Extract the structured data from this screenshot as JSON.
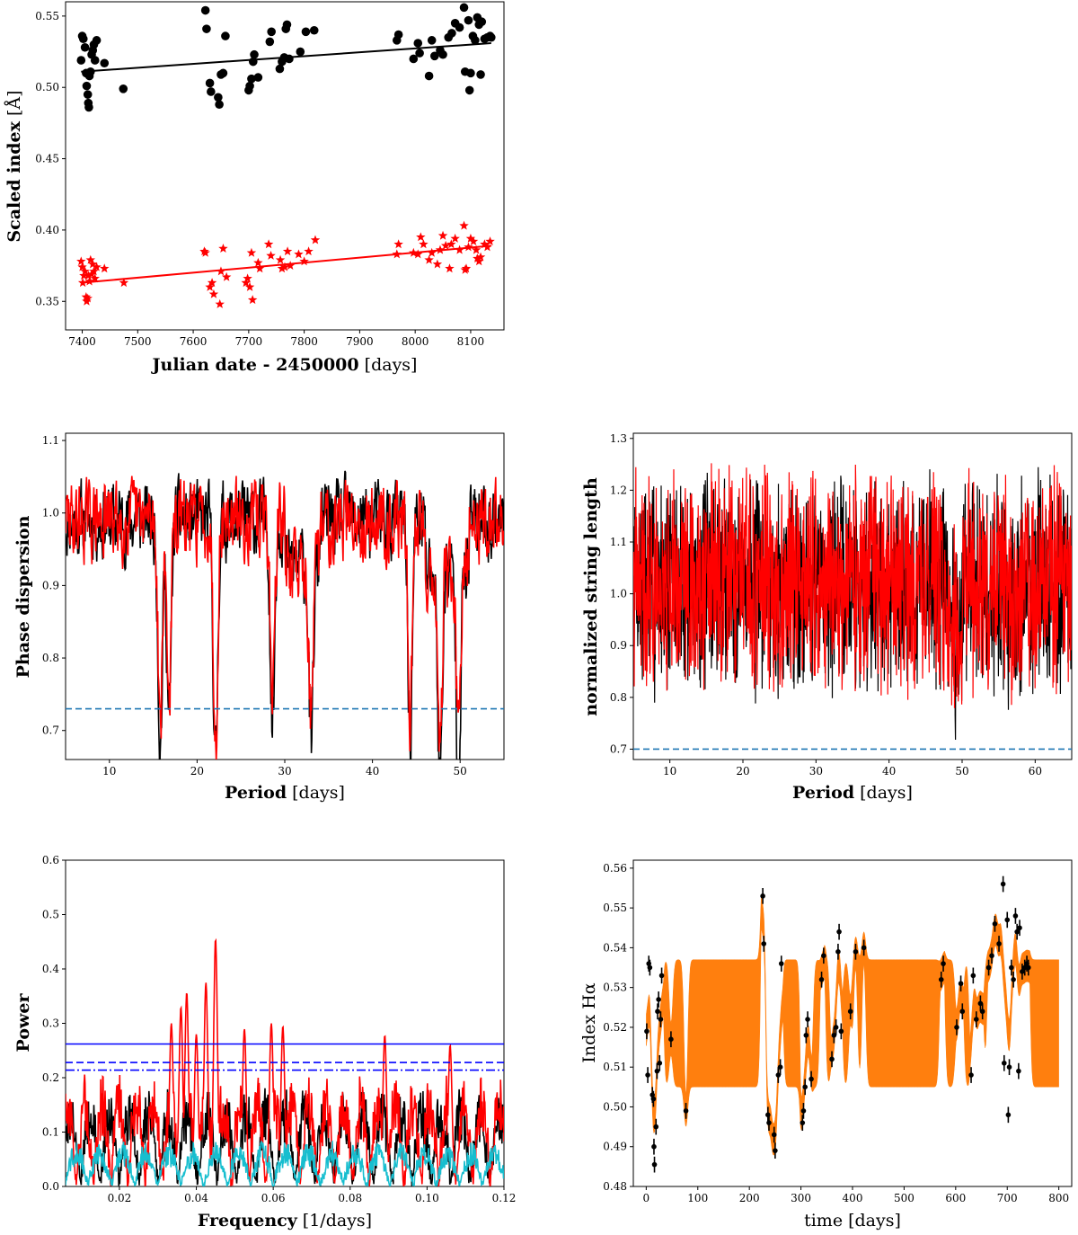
{
  "panels": {
    "a": {
      "xlabel_bold": "Julian date - 2450000",
      "xlabel_unit": " [days]",
      "ylabel_bold": "Scaled index",
      "ylabel_unit": " [Å]",
      "xlim": [
        7370,
        8160
      ],
      "ylim": [
        0.33,
        0.56
      ],
      "xticks": [
        7400,
        7500,
        7600,
        7700,
        7800,
        7900,
        8000,
        8100
      ],
      "yticks": [
        0.35,
        0.4,
        0.45,
        0.5,
        0.55
      ],
      "ytick_labels": [
        "0.35",
        "0.40",
        "0.45",
        "0.50",
        "0.55"
      ],
      "black_points": [
        [
          7398,
          0.519
        ],
        [
          7400,
          0.536
        ],
        [
          7402,
          0.534
        ],
        [
          7405,
          0.528
        ],
        [
          7407,
          0.51
        ],
        [
          7408,
          0.501
        ],
        [
          7410,
          0.495
        ],
        [
          7411,
          0.489
        ],
        [
          7412,
          0.486
        ],
        [
          7413,
          0.508
        ],
        [
          7415,
          0.511
        ],
        [
          7417,
          0.523
        ],
        [
          7419,
          0.526
        ],
        [
          7421,
          0.53
        ],
        [
          7423,
          0.519
        ],
        [
          7426,
          0.533
        ],
        [
          7440,
          0.517
        ],
        [
          7474,
          0.499
        ],
        [
          7622,
          0.554
        ],
        [
          7624,
          0.541
        ],
        [
          7630,
          0.503
        ],
        [
          7632,
          0.497
        ],
        [
          7645,
          0.493
        ],
        [
          7647,
          0.488
        ],
        [
          7650,
          0.509
        ],
        [
          7654,
          0.51
        ],
        [
          7658,
          0.536
        ],
        [
          7700,
          0.498
        ],
        [
          7702,
          0.501
        ],
        [
          7705,
          0.506
        ],
        [
          7708,
          0.518
        ],
        [
          7710,
          0.523
        ],
        [
          7717,
          0.507
        ],
        [
          7738,
          0.532
        ],
        [
          7741,
          0.539
        ],
        [
          7756,
          0.513
        ],
        [
          7760,
          0.518
        ],
        [
          7764,
          0.521
        ],
        [
          7767,
          0.541
        ],
        [
          7769,
          0.544
        ],
        [
          7773,
          0.52
        ],
        [
          7793,
          0.525
        ],
        [
          7803,
          0.539
        ],
        [
          7818,
          0.54
        ],
        [
          7967,
          0.533
        ],
        [
          7970,
          0.537
        ],
        [
          7997,
          0.52
        ],
        [
          8005,
          0.531
        ],
        [
          8008,
          0.524
        ],
        [
          8025,
          0.508
        ],
        [
          8030,
          0.533
        ],
        [
          8035,
          0.522
        ],
        [
          8045,
          0.526
        ],
        [
          8050,
          0.523
        ],
        [
          8060,
          0.535
        ],
        [
          8066,
          0.538
        ],
        [
          8072,
          0.545
        ],
        [
          8080,
          0.542
        ],
        [
          8088,
          0.556
        ],
        [
          8090,
          0.511
        ],
        [
          8096,
          0.547
        ],
        [
          8098,
          0.498
        ],
        [
          8100,
          0.51
        ],
        [
          8104,
          0.536
        ],
        [
          8108,
          0.533
        ],
        [
          8112,
          0.549
        ],
        [
          8115,
          0.544
        ],
        [
          8118,
          0.509
        ],
        [
          8120,
          0.546
        ],
        [
          8125,
          0.534
        ],
        [
          8130,
          0.535
        ],
        [
          8135,
          0.536
        ],
        [
          8137,
          0.535
        ]
      ],
      "red_points": [
        [
          7398,
          0.378
        ],
        [
          7400,
          0.374
        ],
        [
          7401,
          0.363
        ],
        [
          7403,
          0.368
        ],
        [
          7405,
          0.371
        ],
        [
          7407,
          0.353
        ],
        [
          7408,
          0.35
        ],
        [
          7410,
          0.352
        ],
        [
          7411,
          0.368
        ],
        [
          7413,
          0.364
        ],
        [
          7415,
          0.379
        ],
        [
          7417,
          0.369
        ],
        [
          7419,
          0.376
        ],
        [
          7421,
          0.371
        ],
        [
          7423,
          0.366
        ],
        [
          7426,
          0.374
        ],
        [
          7440,
          0.373
        ],
        [
          7475,
          0.363
        ],
        [
          7620,
          0.385
        ],
        [
          7622,
          0.384
        ],
        [
          7630,
          0.36
        ],
        [
          7634,
          0.363
        ],
        [
          7637,
          0.355
        ],
        [
          7648,
          0.348
        ],
        [
          7650,
          0.371
        ],
        [
          7654,
          0.387
        ],
        [
          7660,
          0.367
        ],
        [
          7695,
          0.363
        ],
        [
          7698,
          0.366
        ],
        [
          7702,
          0.36
        ],
        [
          7705,
          0.384
        ],
        [
          7707,
          0.351
        ],
        [
          7717,
          0.377
        ],
        [
          7720,
          0.373
        ],
        [
          7736,
          0.39
        ],
        [
          7740,
          0.382
        ],
        [
          7757,
          0.379
        ],
        [
          7760,
          0.373
        ],
        [
          7765,
          0.374
        ],
        [
          7770,
          0.385
        ],
        [
          7775,
          0.375
        ],
        [
          7790,
          0.383
        ],
        [
          7800,
          0.378
        ],
        [
          7808,
          0.385
        ],
        [
          7820,
          0.393
        ],
        [
          7967,
          0.383
        ],
        [
          7970,
          0.39
        ],
        [
          7997,
          0.384
        ],
        [
          8005,
          0.383
        ],
        [
          8010,
          0.395
        ],
        [
          8015,
          0.39
        ],
        [
          8025,
          0.379
        ],
        [
          8030,
          0.384
        ],
        [
          8040,
          0.376
        ],
        [
          8045,
          0.386
        ],
        [
          8050,
          0.396
        ],
        [
          8055,
          0.389
        ],
        [
          8062,
          0.373
        ],
        [
          8065,
          0.39
        ],
        [
          8072,
          0.394
        ],
        [
          8080,
          0.386
        ],
        [
          8088,
          0.403
        ],
        [
          8090,
          0.372
        ],
        [
          8092,
          0.373
        ],
        [
          8096,
          0.388
        ],
        [
          8100,
          0.394
        ],
        [
          8105,
          0.392
        ],
        [
          8110,
          0.386
        ],
        [
          8112,
          0.38
        ],
        [
          8115,
          0.378
        ],
        [
          8118,
          0.381
        ],
        [
          8125,
          0.39
        ],
        [
          8130,
          0.388
        ],
        [
          8135,
          0.392
        ]
      ],
      "black_fit": [
        [
          7398,
          0.511
        ],
        [
          8137,
          0.531
        ]
      ],
      "red_fit": [
        [
          7398,
          0.363
        ],
        [
          8137,
          0.389
        ]
      ],
      "colors": {
        "black": "#000000",
        "red": "#ff0000"
      }
    },
    "b": {
      "xlabel_bold": "Period",
      "xlabel_unit": " [days]",
      "ylabel_bold": "Phase dispersion",
      "xlim": [
        5,
        55
      ],
      "ylim": [
        0.66,
        1.11
      ],
      "xticks": [
        10,
        20,
        30,
        40,
        50
      ],
      "yticks": [
        0.7,
        0.8,
        0.9,
        1.0,
        1.1
      ],
      "ytick_labels": [
        "0.7",
        "0.8",
        "0.9",
        "1.0",
        "1.1"
      ],
      "threshold": 0.73,
      "n_points": 900,
      "dips": [
        [
          15.8,
          0.715
        ],
        [
          16.8,
          0.75
        ],
        [
          22.1,
          0.69
        ],
        [
          28.6,
          0.748
        ],
        [
          33.0,
          0.775
        ],
        [
          44.3,
          0.727
        ],
        [
          47.7,
          0.735
        ],
        [
          49.8,
          0.755
        ]
      ],
      "colors": {
        "black": "#000000",
        "red": "#ff0000",
        "threshold": "#1f77b4"
      }
    },
    "c": {
      "xlabel_bold": "Period",
      "xlabel_unit": " [days]",
      "ylabel_bold": "normalized string length",
      "xlim": [
        5,
        65
      ],
      "ylim": [
        0.68,
        1.31
      ],
      "xticks": [
        10,
        20,
        30,
        40,
        50,
        60
      ],
      "yticks": [
        0.7,
        0.8,
        0.9,
        1.0,
        1.1,
        1.2,
        1.3
      ],
      "ytick_labels": [
        "0.7",
        "0.8",
        "0.9",
        "1.0",
        "1.1",
        "1.2",
        "1.3"
      ],
      "threshold": 0.7,
      "n_points": 1400,
      "colors": {
        "black": "#000000",
        "red": "#ff0000",
        "threshold": "#1f77b4"
      }
    },
    "d": {
      "xlabel_bold": "Frequency",
      "xlabel_unit": " [1/days]",
      "ylabel_bold": "Power",
      "xlim": [
        0.006,
        0.12
      ],
      "ylim": [
        0.0,
        0.6
      ],
      "xticks": [
        0.02,
        0.04,
        0.06,
        0.08,
        0.1,
        0.12
      ],
      "xtick_labels": [
        "0.02",
        "0.04",
        "0.06",
        "0.08",
        "0.10",
        "0.12"
      ],
      "yticks": [
        0.0,
        0.1,
        0.2,
        0.3,
        0.4,
        0.5,
        0.6
      ],
      "ytick_labels": [
        "0.0",
        "0.1",
        "0.2",
        "0.3",
        "0.4",
        "0.5",
        "0.6"
      ],
      "fap_levels": [
        0.262,
        0.228,
        0.214
      ],
      "peaks": [
        [
          0.0375,
          0.357
        ],
        [
          0.0425,
          0.375
        ],
        [
          0.045,
          0.455
        ],
        [
          0.0335,
          0.3
        ],
        [
          0.036,
          0.33
        ],
        [
          0.04,
          0.28
        ],
        [
          0.0525,
          0.29
        ],
        [
          0.0595,
          0.3
        ],
        [
          0.0625,
          0.295
        ],
        [
          0.089,
          0.278
        ],
        [
          0.106,
          0.26
        ]
      ],
      "colors": {
        "black": "#000000",
        "red": "#ff0000",
        "cyan": "#17becf",
        "fap": "#0000ff"
      }
    },
    "e": {
      "xlabel": "time [days]",
      "ylabel_text": "Index H",
      "ylabel_greek": "α",
      "xlim": [
        -25,
        825
      ],
      "ylim": [
        0.48,
        0.562
      ],
      "xticks": [
        0,
        100,
        200,
        300,
        400,
        500,
        600,
        700,
        800
      ],
      "yticks": [
        0.48,
        0.49,
        0.5,
        0.51,
        0.52,
        0.53,
        0.54,
        0.55,
        0.56
      ],
      "ytick_labels": [
        "0.48",
        "0.49",
        "0.50",
        "0.51",
        "0.52",
        "0.53",
        "0.54",
        "0.55",
        "0.56"
      ],
      "band": [
        0.505,
        0.537
      ],
      "points": [
        [
          1,
          0.519,
          0.002
        ],
        [
          3,
          0.508,
          0.002
        ],
        [
          5,
          0.536,
          0.002
        ],
        [
          7,
          0.535,
          0.002
        ],
        [
          12,
          0.503,
          0.002
        ],
        [
          14,
          0.502,
          0.002
        ],
        [
          15,
          0.49,
          0.002
        ],
        [
          16,
          0.4855,
          0.002
        ],
        [
          19,
          0.495,
          0.002
        ],
        [
          21,
          0.509,
          0.002
        ],
        [
          22,
          0.524,
          0.002
        ],
        [
          24,
          0.527,
          0.002
        ],
        [
          26,
          0.511,
          0.002
        ],
        [
          28,
          0.522,
          0.002
        ],
        [
          30,
          0.533,
          0.002
        ],
        [
          48,
          0.517,
          0.002
        ],
        [
          77,
          0.499,
          0.002
        ],
        [
          226,
          0.553,
          0.002
        ],
        [
          228,
          0.541,
          0.002
        ],
        [
          236,
          0.498,
          0.002
        ],
        [
          238,
          0.496,
          0.002
        ],
        [
          248,
          0.493,
          0.002
        ],
        [
          250,
          0.489,
          0.002
        ],
        [
          256,
          0.508,
          0.002
        ],
        [
          260,
          0.51,
          0.002
        ],
        [
          262,
          0.536,
          0.002
        ],
        [
          303,
          0.496,
          0.002
        ],
        [
          305,
          0.499,
          0.002
        ],
        [
          308,
          0.505,
          0.002
        ],
        [
          310,
          0.518,
          0.002
        ],
        [
          313,
          0.522,
          0.002
        ],
        [
          320,
          0.507,
          0.002
        ],
        [
          340,
          0.532,
          0.002
        ],
        [
          344,
          0.538,
          0.002
        ],
        [
          360,
          0.512,
          0.002
        ],
        [
          364,
          0.518,
          0.002
        ],
        [
          368,
          0.52,
          0.002
        ],
        [
          372,
          0.539,
          0.002
        ],
        [
          374,
          0.544,
          0.002
        ],
        [
          378,
          0.519,
          0.002
        ],
        [
          396,
          0.524,
          0.002
        ],
        [
          406,
          0.539,
          0.002
        ],
        [
          422,
          0.54,
          0.002
        ],
        [
          572,
          0.532,
          0.002
        ],
        [
          576,
          0.536,
          0.002
        ],
        [
          602,
          0.52,
          0.002
        ],
        [
          610,
          0.531,
          0.002
        ],
        [
          613,
          0.524,
          0.002
        ],
        [
          630,
          0.508,
          0.002
        ],
        [
          634,
          0.533,
          0.002
        ],
        [
          640,
          0.522,
          0.002
        ],
        [
          648,
          0.526,
          0.002
        ],
        [
          652,
          0.524,
          0.002
        ],
        [
          664,
          0.535,
          0.002
        ],
        [
          670,
          0.538,
          0.002
        ],
        [
          676,
          0.546,
          0.002
        ],
        [
          684,
          0.541,
          0.002
        ],
        [
          692,
          0.556,
          0.002
        ],
        [
          694,
          0.511,
          0.002
        ],
        [
          700,
          0.547,
          0.002
        ],
        [
          702,
          0.498,
          0.002
        ],
        [
          704,
          0.51,
          0.002
        ],
        [
          708,
          0.535,
          0.002
        ],
        [
          712,
          0.532,
          0.002
        ],
        [
          716,
          0.548,
          0.002
        ],
        [
          719,
          0.544,
          0.002
        ],
        [
          722,
          0.509,
          0.002
        ],
        [
          724,
          0.545,
          0.002
        ],
        [
          729,
          0.534,
          0.002
        ],
        [
          734,
          0.535,
          0.002
        ],
        [
          738,
          0.536,
          0.002
        ],
        [
          741,
          0.535,
          0.002
        ]
      ],
      "colors": {
        "fill": "#ff7f0e",
        "points": "#000000"
      }
    }
  }
}
